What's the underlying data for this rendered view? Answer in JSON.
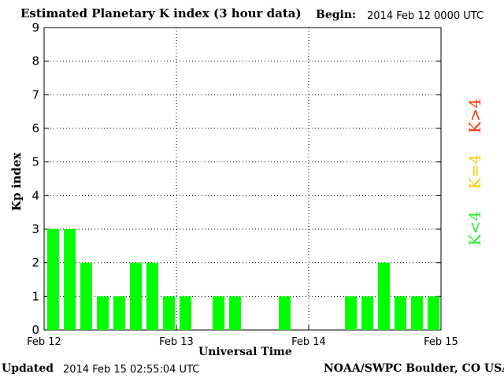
{
  "header": {
    "title": "Estimated Planetary K index (3 hour data)",
    "begin_label": "Begin:",
    "begin_value": "2014 Feb 12 0000 UTC"
  },
  "footer": {
    "updated_label": "Updated",
    "updated_value": "2014 Feb 15 02:55:04 UTC",
    "credit": "NOAA/SWPC Boulder, CO USA"
  },
  "legend": [
    {
      "label": "K>4",
      "color": "#ff2a00"
    },
    {
      "label": "K=4",
      "color": "#ffcc00"
    },
    {
      "label": "K<4",
      "color": "#22ee22"
    }
  ],
  "chart_data": {
    "type": "bar",
    "title": "Estimated Planetary K index (3 hour data)",
    "xlabel": "Universal Time",
    "ylabel": "Kp index",
    "ylim": [
      0,
      9
    ],
    "yticks": [
      0,
      1,
      2,
      3,
      4,
      5,
      6,
      7,
      8,
      9
    ],
    "xticks": [
      "Feb 12",
      "Feb 13",
      "Feb 14",
      "Feb 15"
    ],
    "grid": true,
    "bar_color": "#00ff00",
    "values": [
      3,
      3,
      2,
      1,
      1,
      2,
      2,
      1,
      1,
      0,
      1,
      1,
      0,
      0,
      1,
      0,
      0,
      0,
      1,
      1,
      2,
      1,
      1,
      1
    ]
  }
}
